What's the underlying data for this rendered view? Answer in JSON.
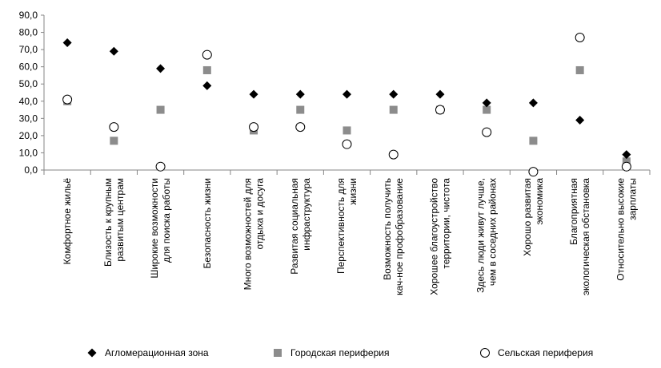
{
  "chart_data": {
    "type": "scatter",
    "ylim": [
      0,
      90
    ],
    "yticks": [
      "0,0",
      "10,0",
      "20,0",
      "30,0",
      "40,0",
      "50,0",
      "60,0",
      "70,0",
      "80,0",
      "90,0"
    ],
    "grid": false,
    "legend_position": "bottom",
    "categories": [
      [
        "Комфортное жильё"
      ],
      [
        "Близость к крупным",
        "развитым центрам"
      ],
      [
        "Широкие возможности",
        "для поиска работы"
      ],
      [
        "Безопасность жизни"
      ],
      [
        "Много возможностей для",
        "отдыха и досуга"
      ],
      [
        "Развитая социальная",
        "инфраструктура"
      ],
      [
        "Перспективность для",
        "жизни"
      ],
      [
        "Возможность получить",
        "кач-ное профобразование"
      ],
      [
        "Хорошее благоустройство",
        "территории, чистота"
      ],
      [
        "Здесь люди живут лучше,",
        "чем в соседних районах"
      ],
      [
        "Хорошо развитая",
        "экономика"
      ],
      [
        "Благоприятная",
        "экологическая обстановка"
      ],
      [
        "Относительно высокие",
        "зарплаты"
      ]
    ],
    "series": [
      {
        "name": "Агломерационная зона",
        "marker": "diamond",
        "color": "#000000",
        "values": [
          74,
          69,
          59,
          49,
          44,
          44,
          44,
          44,
          44,
          39,
          39,
          29,
          9
        ]
      },
      {
        "name": "Городская периферия",
        "marker": "square",
        "color": "#8c8c8c",
        "values": [
          40,
          17,
          35,
          58,
          23,
          35,
          23,
          35,
          35,
          35,
          17,
          58,
          5
        ]
      },
      {
        "name": "Сельская периферия",
        "marker": "circle",
        "color": "#000000",
        "values": [
          41,
          25,
          2,
          67,
          25,
          25,
          15,
          9,
          35,
          22,
          -1,
          77,
          2
        ]
      }
    ]
  }
}
